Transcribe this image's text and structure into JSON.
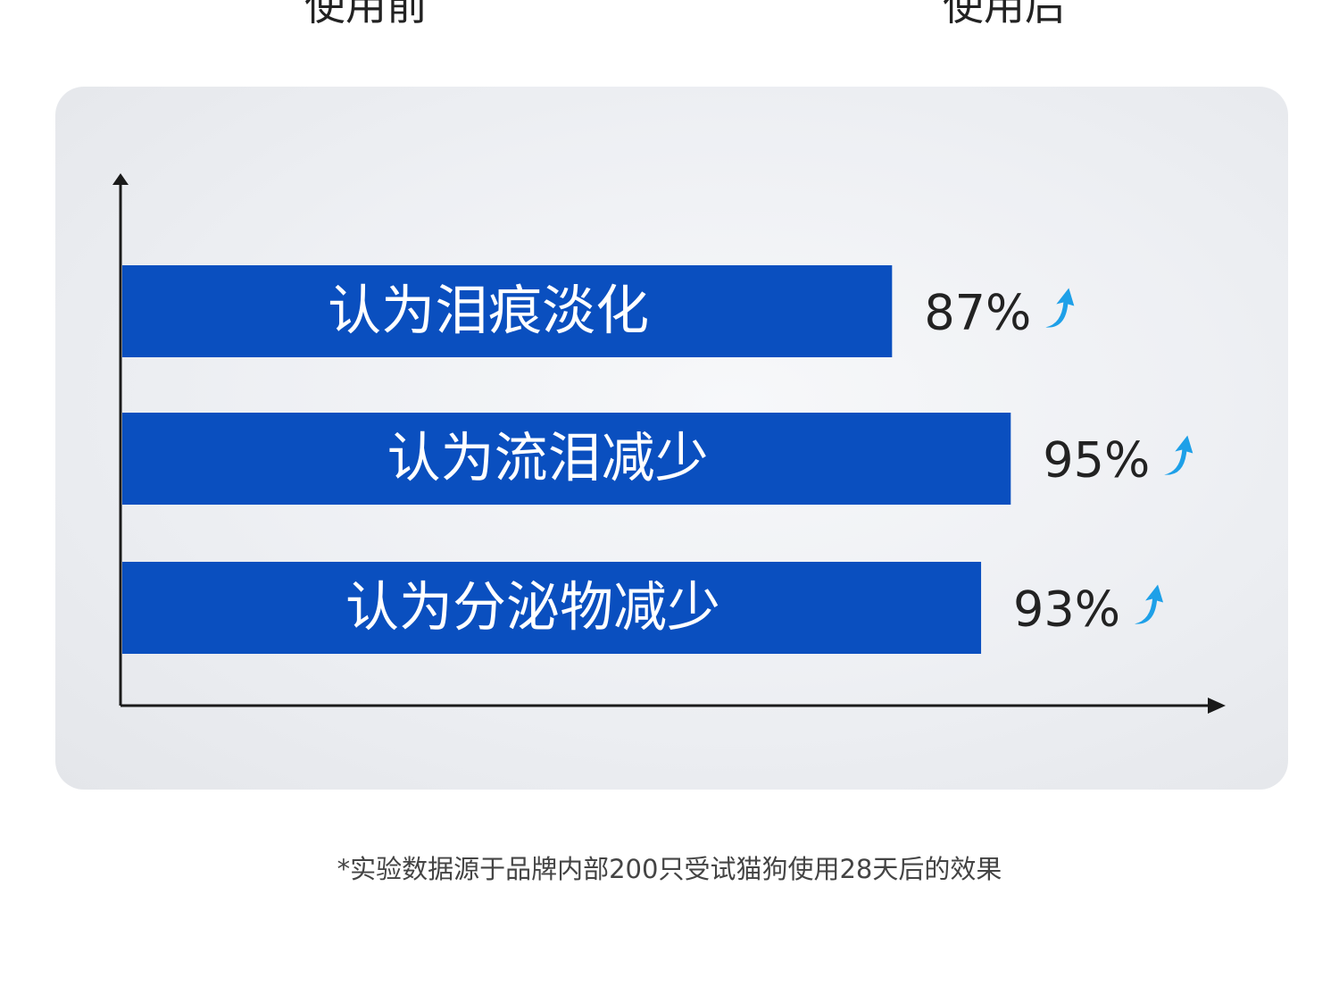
{
  "header": {
    "before_label": "使用前",
    "after_label": "使用后"
  },
  "chart_data": {
    "type": "bar",
    "orientation": "horizontal",
    "categories": [
      "认为泪痕淡化",
      "认为流泪减少",
      "认为分泌物减少"
    ],
    "values": [
      87,
      95,
      93
    ],
    "value_labels": [
      "87%",
      "95%",
      "93%"
    ],
    "unit": "%",
    "xlim": [
      35,
      109
    ],
    "grid": false,
    "bar_color": "#0a4fbf",
    "arrow_color": "#1ea0e8",
    "title": "",
    "xlabel": "",
    "ylabel": ""
  },
  "footnote": "*实验数据源于品牌内部200只受试猫狗使用28天后的效果"
}
